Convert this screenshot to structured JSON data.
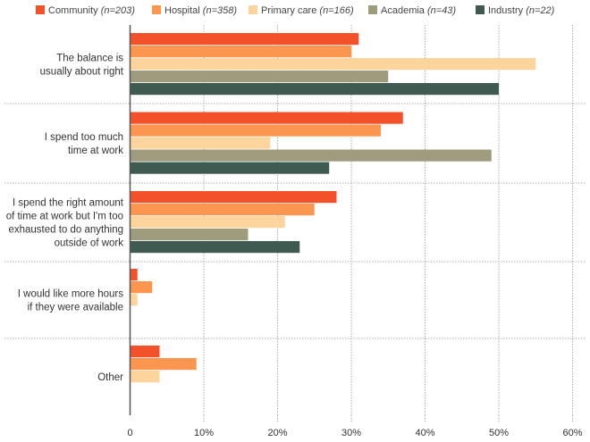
{
  "chart_data": {
    "type": "bar",
    "orientation": "horizontal",
    "title": "",
    "xlabel": "",
    "ylabel": "",
    "xlim": [
      0,
      60
    ],
    "x_ticks": [
      "0",
      "10%",
      "20%",
      "30%",
      "40%",
      "50%",
      "60%"
    ],
    "x_tick_values": [
      0,
      10,
      20,
      30,
      40,
      50,
      60
    ],
    "grid": "vertical dotted",
    "legend_position": "top",
    "categories": [
      [
        "The balance is",
        "usually about right"
      ],
      [
        "I spend too much",
        "time at work"
      ],
      [
        "I spend the right amount",
        "of time at work but I'm too",
        "exhausted to do anything",
        "outside of work"
      ],
      [
        "I would like more hours",
        "if they were available"
      ],
      [
        "Other"
      ]
    ],
    "series": [
      {
        "name": "Community",
        "n": "(n=203)",
        "color": "#f2512a",
        "values": [
          31,
          37,
          28,
          1,
          4
        ]
      },
      {
        "name": "Hospital",
        "n": "(n=358)",
        "color": "#fb9651",
        "values": [
          30,
          34,
          25,
          3,
          9
        ]
      },
      {
        "name": "Primary care",
        "n": "(n=166)",
        "color": "#fdd49b",
        "values": [
          55,
          19,
          21,
          1,
          4
        ]
      },
      {
        "name": "Academia",
        "n": "(n=43)",
        "color": "#9e9c7c",
        "values": [
          35,
          49,
          16,
          0,
          0
        ]
      },
      {
        "name": "Industry",
        "n": "(n=22)",
        "color": "#3f5a50",
        "values": [
          50,
          27,
          23,
          0,
          0
        ]
      }
    ]
  }
}
